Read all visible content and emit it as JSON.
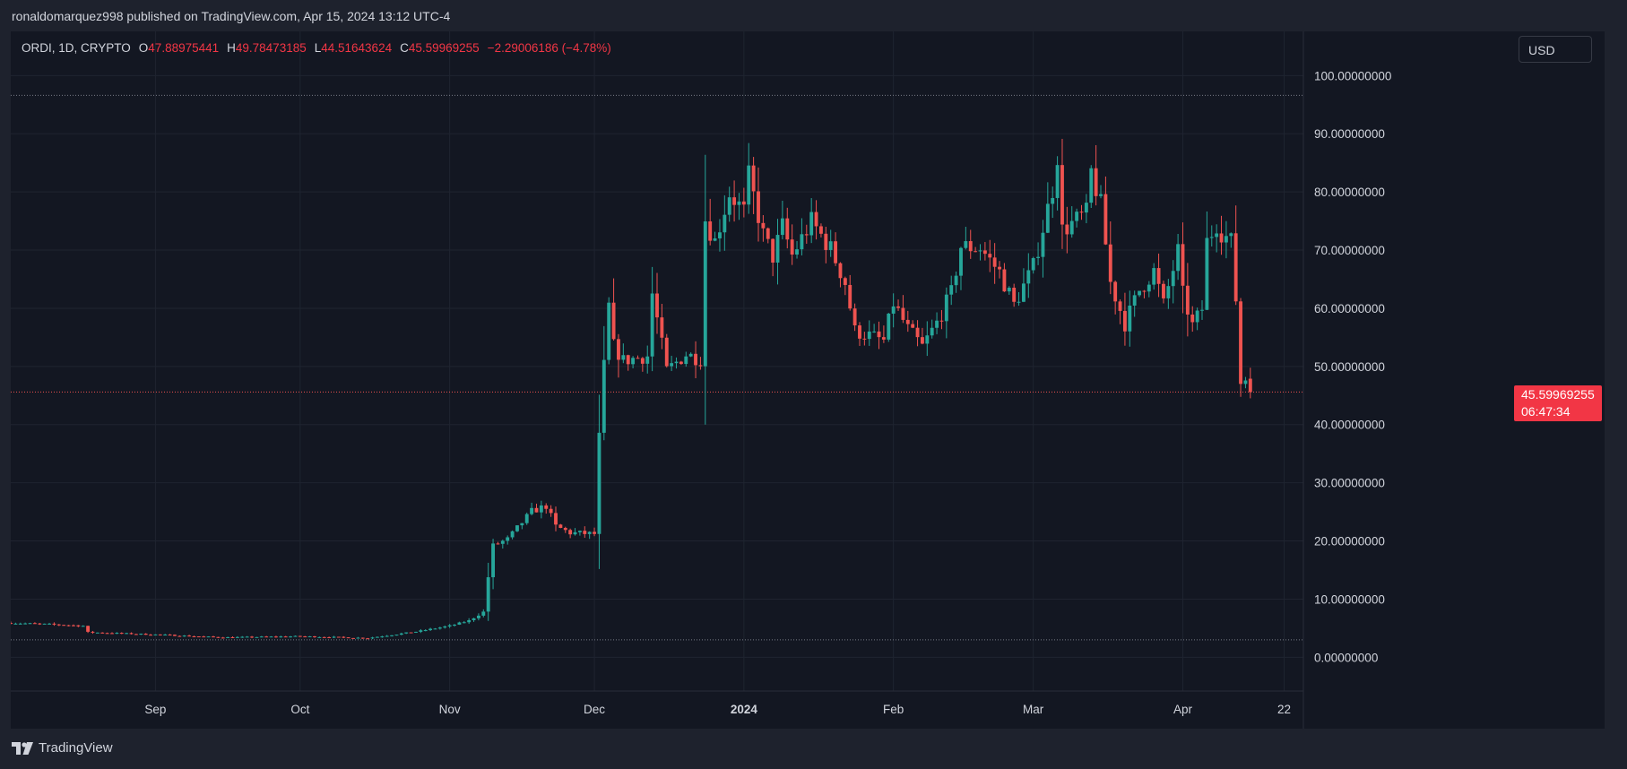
{
  "header": {
    "publish_text": "ronaldomarquez998 published on TradingView.com, Apr 15, 2024 13:12 UTC-4"
  },
  "legend": {
    "symbol": "ORDI, 1D, CRYPTO",
    "open_label": "O",
    "open": "47.88975441",
    "high_label": "H",
    "high": "49.78473185",
    "low_label": "L",
    "low": "44.51643624",
    "close_label": "C",
    "close": "45.59969255",
    "change": "−2.29006186 (−4.78%)"
  },
  "currency": "USD",
  "last_price": {
    "price": "45.59969255",
    "countdown": "06:47:34"
  },
  "footer": {
    "brand": "TradingView"
  },
  "colors": {
    "up": "#26a69a",
    "down": "#ef5350",
    "background": "#131722",
    "frame": "#1e222d",
    "grid": "#1f2430",
    "text": "#d1d4dc"
  },
  "chart_data": {
    "type": "candlestick",
    "interval": "1D",
    "y_tick_labels": [
      "0.00000000",
      "10.00000000",
      "20.00000000",
      "30.00000000",
      "40.00000000",
      "50.00000000",
      "60.00000000",
      "70.00000000",
      "80.00000000",
      "90.00000000",
      "100.00000000"
    ],
    "ylim": [
      -5.8,
      107.6
    ],
    "x_tick_labels": [
      {
        "label": "Sep",
        "date": "2023-09-01",
        "bold": false
      },
      {
        "label": "Oct",
        "date": "2023-10-01",
        "bold": false
      },
      {
        "label": "Nov",
        "date": "2023-11-01",
        "bold": false
      },
      {
        "label": "Dec",
        "date": "2023-12-01",
        "bold": false
      },
      {
        "label": "2024",
        "date": "2024-01-01",
        "bold": true
      },
      {
        "label": "Feb",
        "date": "2024-02-01",
        "bold": false
      },
      {
        "label": "Mar",
        "date": "2024-03-01",
        "bold": false
      },
      {
        "label": "Apr",
        "date": "2024-04-01",
        "bold": false
      },
      {
        "label": "22",
        "date": "2024-04-22",
        "bold": false
      }
    ],
    "xlim": [
      "2023-08-02",
      "2024-04-26"
    ],
    "reference_lines": [
      96.6,
      3.0
    ],
    "last_price_line": 45.6,
    "grid": true,
    "price_axis_side": "right",
    "anchors": [
      [
        "2023-08-02",
        5.9
      ],
      [
        "2023-08-12",
        5.6
      ],
      [
        "2023-08-17",
        5.4
      ],
      [
        "2023-08-18",
        4.3
      ],
      [
        "2023-09-01",
        3.9
      ],
      [
        "2023-09-15",
        3.4
      ],
      [
        "2023-10-01",
        3.6
      ],
      [
        "2023-10-15",
        3.3
      ],
      [
        "2023-10-25",
        4.4
      ],
      [
        "2023-11-01",
        5.4
      ],
      [
        "2023-11-05",
        6.3
      ],
      [
        "2023-11-08",
        7.8
      ],
      [
        "2023-11-09",
        13.8
      ],
      [
        "2023-11-10",
        19.2
      ],
      [
        "2023-11-13",
        20.3
      ],
      [
        "2023-11-18",
        25.1
      ],
      [
        "2023-11-21",
        26.0
      ],
      [
        "2023-11-23",
        22.5
      ],
      [
        "2023-11-26",
        21.4
      ],
      [
        "2023-12-01",
        21.2
      ],
      [
        "2023-12-02",
        37.9
      ],
      [
        "2023-12-03",
        50.1
      ],
      [
        "2023-12-04",
        60.3
      ],
      [
        "2023-12-05",
        53.5
      ],
      [
        "2023-12-07",
        51.0
      ],
      [
        "2023-12-12",
        51.8
      ],
      [
        "2023-12-13",
        62.5
      ],
      [
        "2023-12-16",
        49.3
      ],
      [
        "2023-12-20",
        52.1
      ],
      [
        "2023-12-23",
        51.2
      ],
      [
        "2023-12-24",
        75.3
      ],
      [
        "2023-12-26",
        71.5
      ],
      [
        "2023-12-29",
        79.8
      ],
      [
        "2024-01-01",
        76.6
      ],
      [
        "2024-01-02",
        82.6
      ],
      [
        "2024-01-05",
        72.6
      ],
      [
        "2024-01-07",
        68.9
      ],
      [
        "2024-01-09",
        74.1
      ],
      [
        "2024-01-11",
        69.1
      ],
      [
        "2024-01-15",
        74.9
      ],
      [
        "2024-01-19",
        70.2
      ],
      [
        "2024-01-22",
        64.4
      ],
      [
        "2024-01-24",
        56.1
      ],
      [
        "2024-01-27",
        55.3
      ],
      [
        "2024-01-30",
        54.4
      ],
      [
        "2024-02-01",
        60.9
      ],
      [
        "2024-02-04",
        56.4
      ],
      [
        "2024-02-07",
        53.4
      ],
      [
        "2024-02-10",
        57.5
      ],
      [
        "2024-02-13",
        62.6
      ],
      [
        "2024-02-15",
        70.6
      ],
      [
        "2024-02-19",
        70.4
      ],
      [
        "2024-02-23",
        66.2
      ],
      [
        "2024-02-26",
        60.6
      ],
      [
        "2024-03-01",
        67.1
      ],
      [
        "2024-03-05",
        80.5
      ],
      [
        "2024-03-06",
        86.4
      ],
      [
        "2024-03-07",
        73.4
      ],
      [
        "2024-03-12",
        76.3
      ],
      [
        "2024-03-13",
        83.4
      ],
      [
        "2024-03-15",
        77.7
      ],
      [
        "2024-03-17",
        64.4
      ],
      [
        "2024-03-20",
        57.4
      ],
      [
        "2024-03-23",
        63.1
      ],
      [
        "2024-03-26",
        66.4
      ],
      [
        "2024-03-28",
        60.6
      ],
      [
        "2024-03-31",
        69.8
      ],
      [
        "2024-04-01",
        62.4
      ],
      [
        "2024-04-03",
        57.0
      ],
      [
        "2024-04-05",
        59.9
      ],
      [
        "2024-04-06",
        71.4
      ],
      [
        "2024-04-08",
        74.6
      ],
      [
        "2024-04-09",
        73.1
      ],
      [
        "2024-04-11",
        71.4
      ],
      [
        "2024-04-12",
        61.6
      ],
      [
        "2024-04-13",
        47.2
      ],
      [
        "2024-04-14",
        47.9
      ],
      [
        "2024-04-15",
        45.6
      ]
    ],
    "last_candle": {
      "date": "2024-04-15",
      "open": 47.89,
      "high": 49.78,
      "low": 44.52,
      "close": 45.6
    }
  }
}
